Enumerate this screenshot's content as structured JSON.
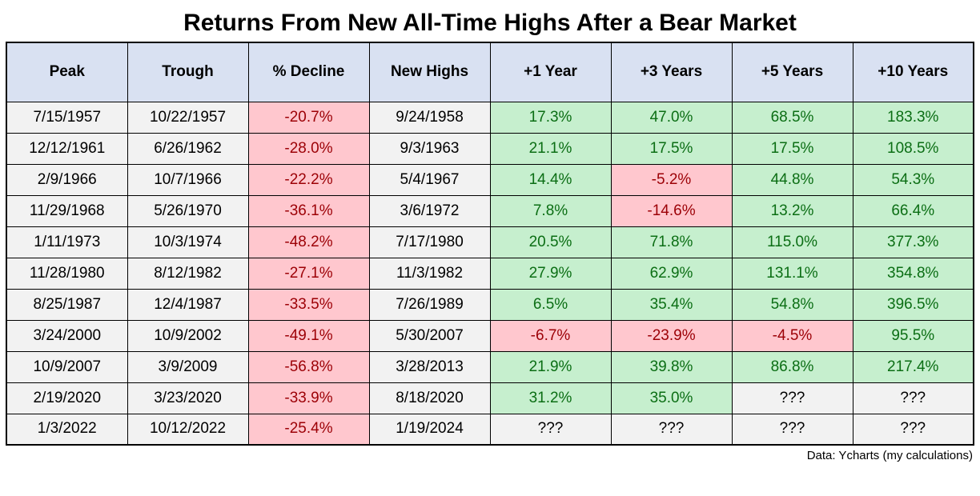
{
  "title": "Returns From New All-Time Highs After a Bear Market",
  "footer": "Data: Ycharts (my calculations)",
  "colors": {
    "header_bg": "#D9E1F2",
    "neutral_bg": "#F2F2F2",
    "positive_bg": "#C6EFCE",
    "positive_text": "#0B6E14",
    "negative_bg": "#FFC7CE",
    "negative_text": "#9C0006",
    "border": "#000000",
    "page_bg": "#FFFFFF"
  },
  "chart_data": {
    "type": "table",
    "columns": [
      "Peak",
      "Trough",
      "% Decline",
      "New Highs",
      "+1 Year",
      "+3 Years",
      "+5 Years",
      "+10 Years"
    ],
    "column_keys": [
      "peak",
      "trough",
      "pct-decline",
      "new-highs",
      "plus-1-year",
      "plus-3-years",
      "plus-5-years",
      "plus-10-years"
    ],
    "unknown_marker": "???",
    "rows": [
      [
        "7/15/1957",
        "10/22/1957",
        "-20.7%",
        "9/24/1958",
        "17.3%",
        "47.0%",
        "68.5%",
        "183.3%"
      ],
      [
        "12/12/1961",
        "6/26/1962",
        "-28.0%",
        "9/3/1963",
        "21.1%",
        "17.5%",
        "17.5%",
        "108.5%"
      ],
      [
        "2/9/1966",
        "10/7/1966",
        "-22.2%",
        "5/4/1967",
        "14.4%",
        "-5.2%",
        "44.8%",
        "54.3%"
      ],
      [
        "11/29/1968",
        "5/26/1970",
        "-36.1%",
        "3/6/1972",
        "7.8%",
        "-14.6%",
        "13.2%",
        "66.4%"
      ],
      [
        "1/11/1973",
        "10/3/1974",
        "-48.2%",
        "7/17/1980",
        "20.5%",
        "71.8%",
        "115.0%",
        "377.3%"
      ],
      [
        "11/28/1980",
        "8/12/1982",
        "-27.1%",
        "11/3/1982",
        "27.9%",
        "62.9%",
        "131.1%",
        "354.8%"
      ],
      [
        "8/25/1987",
        "12/4/1987",
        "-33.5%",
        "7/26/1989",
        "6.5%",
        "35.4%",
        "54.8%",
        "396.5%"
      ],
      [
        "3/24/2000",
        "10/9/2002",
        "-49.1%",
        "5/30/2007",
        "-6.7%",
        "-23.9%",
        "-4.5%",
        "95.5%"
      ],
      [
        "10/9/2007",
        "3/9/2009",
        "-56.8%",
        "3/28/2013",
        "21.9%",
        "39.8%",
        "86.8%",
        "217.4%"
      ],
      [
        "2/19/2020",
        "3/23/2020",
        "-33.9%",
        "8/18/2020",
        "31.2%",
        "35.0%",
        "???",
        "???"
      ],
      [
        "1/3/2022",
        "10/12/2022",
        "-25.4%",
        "1/19/2024",
        "???",
        "???",
        "???",
        "???"
      ]
    ]
  }
}
